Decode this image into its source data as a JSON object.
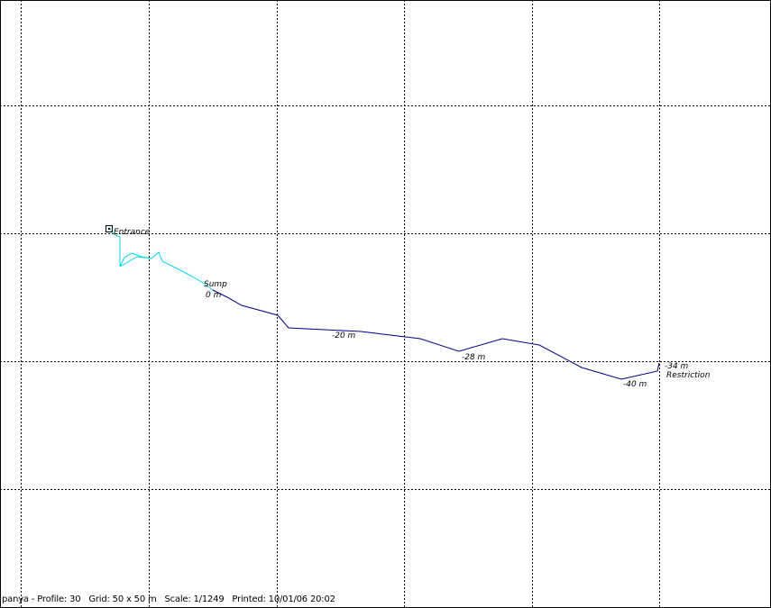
{
  "survey": {
    "view": "Profile",
    "labels": {
      "entrance": "Entrance",
      "sump": "Sump",
      "sump_depth": "0 m",
      "depth_20": "-20 m",
      "depth_28": "-28 m",
      "depth_40": "-40 m",
      "depth_34": "-34 m",
      "restriction": "Restriction"
    },
    "colors": {
      "dry_passage": "#00d5e8",
      "underwater_passage": "#00008b",
      "grid": "#000000",
      "background": "#ffffff"
    }
  },
  "footer": {
    "text": "panya - Profile: 30   Grid: 50 x 50 m   Scale: 1/1249   Printed: 10/01/06 20:02"
  }
}
